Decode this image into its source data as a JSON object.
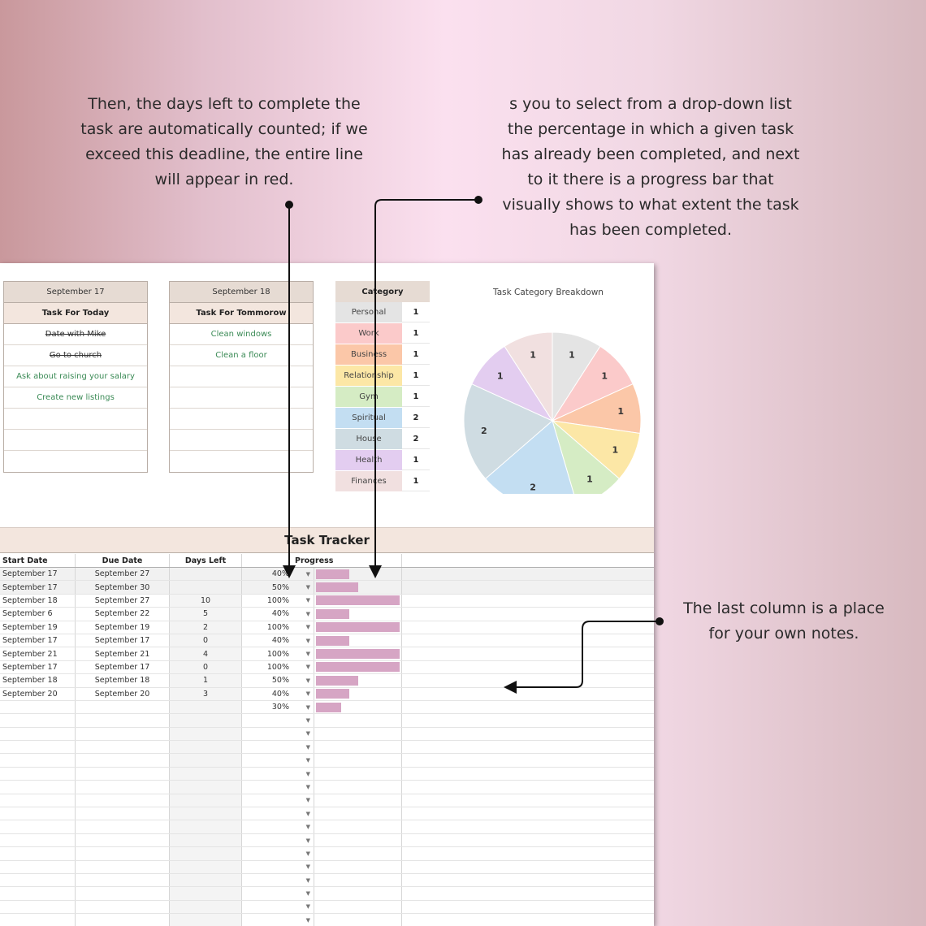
{
  "annotations": {
    "days_left_note": [
      "Then, the days left to complete the",
      "task are automatically counted; if we",
      "exceed this deadline, the entire line",
      "will appear in red."
    ],
    "progress_note": [
      "s you to select from a drop-down list",
      "the percentage in which a given task",
      "has already been completed, and next",
      "to it there is a progress bar that",
      "visually shows to what extent the task",
      "has been completed."
    ],
    "notes_note": [
      "The last column is a place",
      "for your own notes."
    ]
  },
  "today": {
    "date": "September 17",
    "header": "Task For Today",
    "items": [
      {
        "text": "Date with Mike",
        "done": true
      },
      {
        "text": "Go to church",
        "done": true
      },
      {
        "text": "Ask about raising your salary",
        "done": false
      },
      {
        "text": "Create new listings",
        "done": false
      },
      {
        "text": "",
        "done": false
      },
      {
        "text": "",
        "done": false
      },
      {
        "text": "",
        "done": false
      }
    ]
  },
  "tomorrow": {
    "date": "September 18",
    "header": "Task For Tommorow",
    "items": [
      {
        "text": "Clean windows",
        "done": false
      },
      {
        "text": "Clean a floor",
        "done": false
      },
      {
        "text": "",
        "done": false
      },
      {
        "text": "",
        "done": false
      },
      {
        "text": "",
        "done": false
      },
      {
        "text": "",
        "done": false
      },
      {
        "text": "",
        "done": false
      }
    ]
  },
  "category_table": {
    "header": "Category",
    "rows": [
      {
        "name": "Personal",
        "count": "1",
        "color": "#e4e4e4"
      },
      {
        "name": "Work",
        "count": "1",
        "color": "#fbcaca"
      },
      {
        "name": "Business",
        "count": "1",
        "color": "#fbc7a8"
      },
      {
        "name": "Relationship",
        "count": "1",
        "color": "#fce7a6"
      },
      {
        "name": "Gym",
        "count": "1",
        "color": "#d5ecc4"
      },
      {
        "name": "Spiritual",
        "count": "2",
        "color": "#c3def2"
      },
      {
        "name": "House",
        "count": "2",
        "color": "#cfdce2"
      },
      {
        "name": "Health",
        "count": "1",
        "color": "#e3cdf0"
      },
      {
        "name": "Finances",
        "count": "1",
        "color": "#f1e0e0"
      }
    ]
  },
  "chart_data": {
    "type": "pie",
    "title": "Task Category Breakdown",
    "categories": [
      "Personal",
      "Work",
      "Business",
      "Relationship",
      "Gym",
      "Spiritual",
      "House",
      "Health",
      "Finances"
    ],
    "values": [
      1,
      1,
      1,
      1,
      1,
      2,
      2,
      1,
      1
    ],
    "colors": [
      "#e4e4e4",
      "#fbcaca",
      "#fbc7a8",
      "#fce7a6",
      "#d5ecc4",
      "#c3def2",
      "#cfdce2",
      "#e3cdf0",
      "#f1e0e0"
    ]
  },
  "tracker": {
    "title": "Task Tracker",
    "headers": {
      "start": "Start Date",
      "due": "Due Date",
      "days": "Days Left",
      "progress": "Progress"
    },
    "rows": [
      {
        "start": "September 17",
        "due": "September 27",
        "days": "",
        "pct": "40%",
        "value": 0.4
      },
      {
        "start": "September 17",
        "due": "September 30",
        "days": "",
        "pct": "50%",
        "value": 0.5
      },
      {
        "start": "September 18",
        "due": "September 27",
        "days": "10",
        "pct": "100%",
        "value": 1.0
      },
      {
        "start": "September 6",
        "due": "September 22",
        "days": "5",
        "pct": "40%",
        "value": 0.4
      },
      {
        "start": "September 19",
        "due": "September 19",
        "days": "2",
        "pct": "100%",
        "value": 1.0
      },
      {
        "start": "September 17",
        "due": "September 17",
        "days": "0",
        "pct": "40%",
        "value": 0.4
      },
      {
        "start": "September 21",
        "due": "September 21",
        "days": "4",
        "pct": "100%",
        "value": 1.0
      },
      {
        "start": "September 17",
        "due": "September 17",
        "days": "0",
        "pct": "100%",
        "value": 1.0
      },
      {
        "start": "September 18",
        "due": "September 18",
        "days": "1",
        "pct": "50%",
        "value": 0.5
      },
      {
        "start": "September 20",
        "due": "September 20",
        "days": "3",
        "pct": "40%",
        "value": 0.4
      },
      {
        "start": "",
        "due": "",
        "days": "",
        "pct": "30%",
        "value": 0.3
      }
    ],
    "empty_rows": 16,
    "bar_color": "#d6a5c4"
  }
}
